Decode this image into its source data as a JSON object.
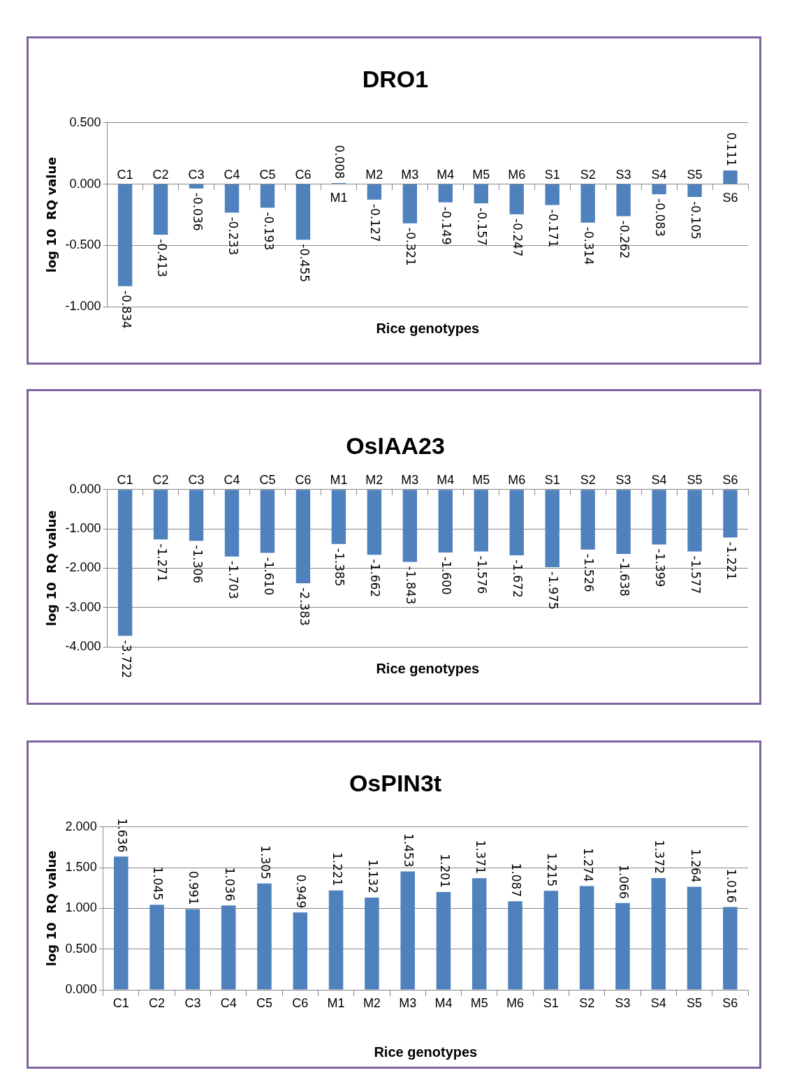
{
  "chart_data": [
    {
      "type": "bar",
      "title": "DRO1",
      "xlabel": "Rice genotypes",
      "ylabel": "log 10  RQ value",
      "categories": [
        "C1",
        "C2",
        "C3",
        "C4",
        "C5",
        "C6",
        "M1",
        "M2",
        "M3",
        "M4",
        "M5",
        "M6",
        "S1",
        "S2",
        "S3",
        "S4",
        "S5",
        "S6"
      ],
      "color": "#4f81bd",
      "values": [
        -0.834,
        -0.413,
        -0.036,
        -0.233,
        -0.193,
        -0.455,
        0.008,
        -0.127,
        -0.321,
        -0.149,
        -0.157,
        -0.247,
        -0.171,
        -0.314,
        -0.262,
        -0.083,
        -0.105,
        0.111
      ],
      "value_labels": [
        "-0.834",
        "-0.413",
        "-0.036",
        "-0.233",
        "-0.193",
        "-0.455",
        "0.008",
        "-0.127",
        "-0.321",
        "-0.149",
        "-0.157",
        "-0.247",
        "-0.171",
        "-0.314",
        "-0.262",
        "-0.083",
        "-0.105",
        "0.111"
      ],
      "ylim": [
        -1,
        0.5
      ],
      "yticks": [
        {
          "value": -1,
          "label": "-1.000"
        },
        {
          "value": -0.5,
          "label": "-0.500"
        },
        {
          "value": 0,
          "label": "0.000"
        },
        {
          "value": 0.5,
          "label": "0.500"
        }
      ],
      "grid": "y",
      "legend": false
    },
    {
      "type": "bar",
      "title": "OsIAA23",
      "xlabel": "Rice genotypes",
      "ylabel": "log 10  RQ value",
      "categories": [
        "C1",
        "C2",
        "C3",
        "C4",
        "C5",
        "C6",
        "M1",
        "M2",
        "M3",
        "M4",
        "M5",
        "M6",
        "S1",
        "S2",
        "S3",
        "S4",
        "S5",
        "S6"
      ],
      "color": "#4f81bd",
      "values": [
        -3.722,
        -1.271,
        -1.306,
        -1.703,
        -1.61,
        -2.383,
        -1.385,
        -1.662,
        -1.843,
        -1.6,
        -1.576,
        -1.672,
        -1.975,
        -1.526,
        -1.638,
        -1.399,
        -1.577,
        -1.221
      ],
      "value_labels": [
        "-3.722",
        "-1.271",
        "-1.306",
        "-1.703",
        "-1.610",
        "-2.383",
        "-1.385",
        "-1.662",
        "-1.843",
        "-1.600",
        "-1.576",
        "-1.672",
        "-1.975",
        "-1.526",
        "-1.638",
        "-1.399",
        "-1.577",
        "-1.221"
      ],
      "ylim": [
        -4,
        0
      ],
      "yticks": [
        {
          "value": -4,
          "label": "-4.000"
        },
        {
          "value": -3,
          "label": "-3.000"
        },
        {
          "value": -2,
          "label": "-2.000"
        },
        {
          "value": -1,
          "label": "-1.000"
        },
        {
          "value": 0,
          "label": "0.000"
        }
      ],
      "grid": "y",
      "legend": false
    },
    {
      "type": "bar",
      "title": "OsPIN3t",
      "xlabel": "Rice genotypes",
      "ylabel": "log 10  RQ value",
      "categories": [
        "C1",
        "C2",
        "C3",
        "C4",
        "C5",
        "C6",
        "M1",
        "M2",
        "M3",
        "M4",
        "M5",
        "M6",
        "S1",
        "S2",
        "S3",
        "S4",
        "S5",
        "S6"
      ],
      "color": "#4f81bd",
      "values": [
        1.636,
        1.045,
        0.991,
        1.036,
        1.305,
        0.949,
        1.221,
        1.132,
        1.453,
        1.201,
        1.371,
        1.087,
        1.215,
        1.274,
        1.066,
        1.372,
        1.264,
        1.016
      ],
      "value_labels": [
        "1.636",
        "1.045",
        "0.991",
        "1.036",
        "1.305",
        "0.949",
        "1.221",
        "1.132",
        "1.453",
        "1.201",
        "1.371",
        "1.087",
        "1.215",
        "1.274",
        "1.066",
        "1.372",
        "1.264",
        "1.016"
      ],
      "ylim": [
        0,
        2
      ],
      "yticks": [
        {
          "value": 0,
          "label": "0.000"
        },
        {
          "value": 0.5,
          "label": "0.500"
        },
        {
          "value": 1,
          "label": "1.000"
        },
        {
          "value": 1.5,
          "label": "1.500"
        },
        {
          "value": 2,
          "label": "2.000"
        }
      ],
      "grid": "y",
      "legend": false
    }
  ]
}
